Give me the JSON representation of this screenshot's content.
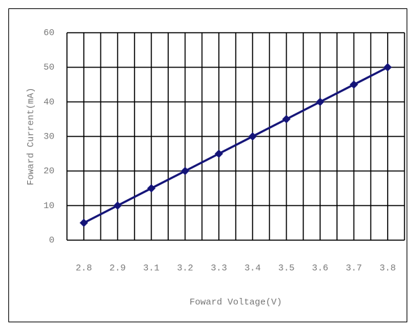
{
  "chart_data": {
    "type": "line",
    "x_label": "Foward Voltage(V)",
    "y_label": "Foward Current(mA)",
    "categories": [
      "2.8",
      "2.9",
      "3.1",
      "3.2",
      "3.3",
      "3.4",
      "3.5",
      "3.6",
      "3.7",
      "3.8"
    ],
    "series": [
      {
        "color": "#141478",
        "values": [
          5,
          10,
          15,
          20,
          25,
          30,
          35,
          40,
          45,
          50
        ]
      }
    ],
    "ylim": [
      0,
      60
    ],
    "yticks": [
      0,
      10,
      20,
      30,
      40,
      50,
      60
    ],
    "grid": true
  }
}
